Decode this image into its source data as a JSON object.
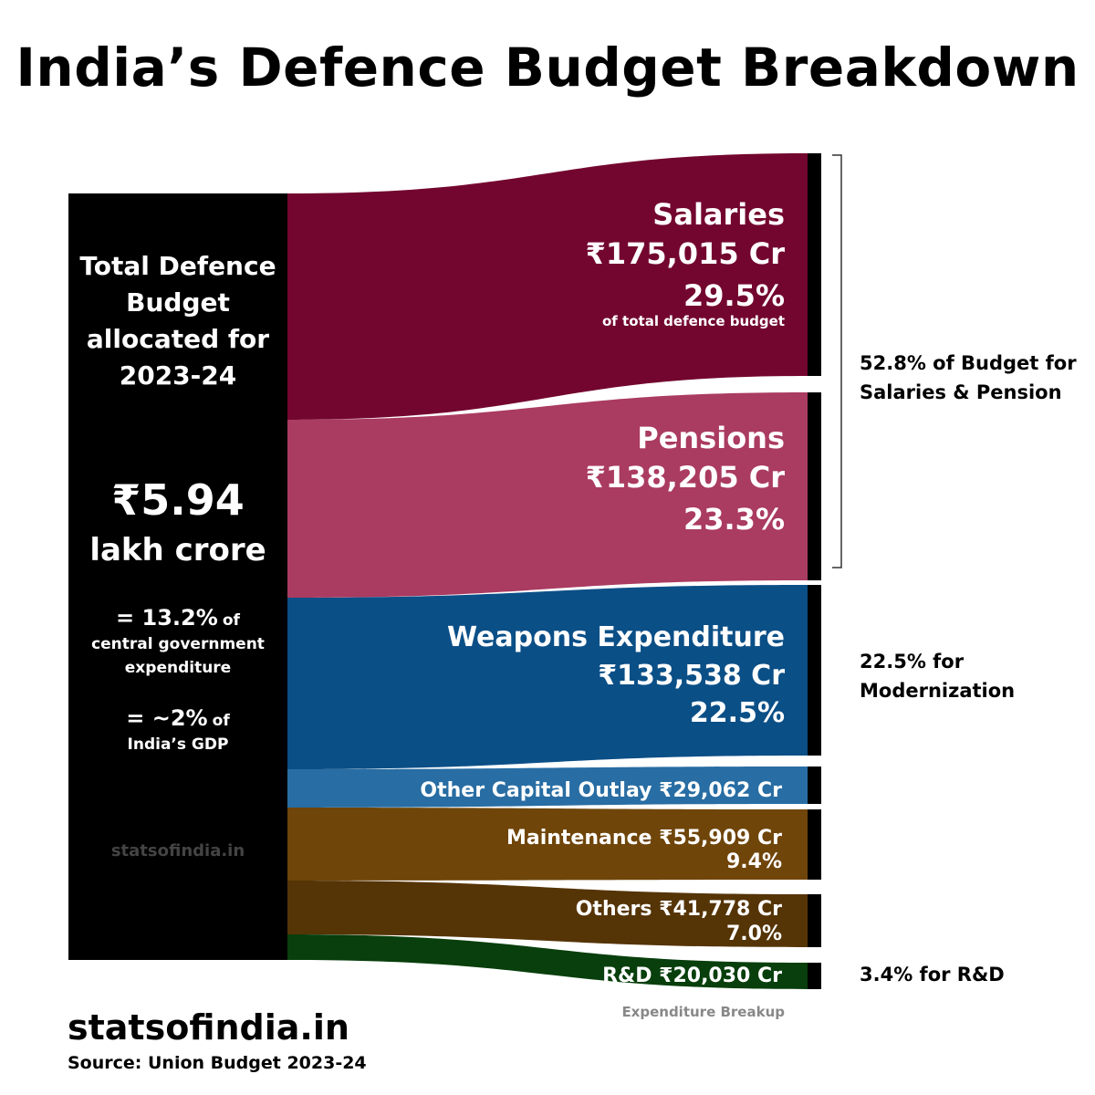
{
  "title": "India’s Defence Budget Breakdown",
  "colors": {
    "salaries": "#73062f",
    "pensions": "#aa3b61",
    "weapons": "#0b4f87",
    "other_capital": "#286da3",
    "maintenance": "#6f4509",
    "others": "#553406",
    "rnd": "#083f0c"
  },
  "total_box": {
    "label": "Total Defence Budget allocated for 2023-24",
    "amount": "₹5.94",
    "unit": "lakh crore",
    "note1_big": "= 13.2%",
    "note1_small_a": "of",
    "note1_small_b": "central government expenditure",
    "note2_big": "= ~2%",
    "note2_small_a": "of",
    "note2_small_b": "India’s GDP",
    "watermark": "statsofindia.in"
  },
  "chart_data": {
    "type": "sankey",
    "title": "India’s Defence Budget Breakdown",
    "source_label": "Total Defence Budget allocated for 2023-24",
    "total": "₹5.94 lakh crore",
    "unit": "Cr",
    "flows": [
      {
        "name": "Salaries",
        "amount_label": "₹175,015 Cr",
        "value": 175015,
        "percent": "29.5%",
        "note": "of total defence budget"
      },
      {
        "name": "Pensions",
        "amount_label": "₹138,205 Cr",
        "value": 138205,
        "percent": "23.3%"
      },
      {
        "name": "Weapons Expenditure",
        "amount_label": "₹133,538 Cr",
        "value": 133538,
        "percent": "22.5%"
      },
      {
        "name": "Other Capital Outlay",
        "amount_label": "₹29,062 Cr",
        "value": 29062
      },
      {
        "name": "Maintenance",
        "amount_label": "₹55,909 Cr",
        "value": 55909,
        "percent": "9.4%"
      },
      {
        "name": "Others",
        "amount_label": "₹41,778 Cr",
        "value": 41778,
        "percent": "7.0%"
      },
      {
        "name": "R&D",
        "amount_label": "₹20,030 Cr",
        "value": 20030
      }
    ],
    "groups": [
      {
        "label_line1": "52.8% of Budget for",
        "label_line2": "Salaries & Pension"
      },
      {
        "label_line1": "22.5% for",
        "label_line2": "Modernization"
      },
      {
        "label_line1": "3.4% for R&D"
      }
    ],
    "caption": "Expenditure Breakup"
  },
  "footer": {
    "brand": "statsofindia.in",
    "source": "Source: Union Budget 2023-24"
  }
}
